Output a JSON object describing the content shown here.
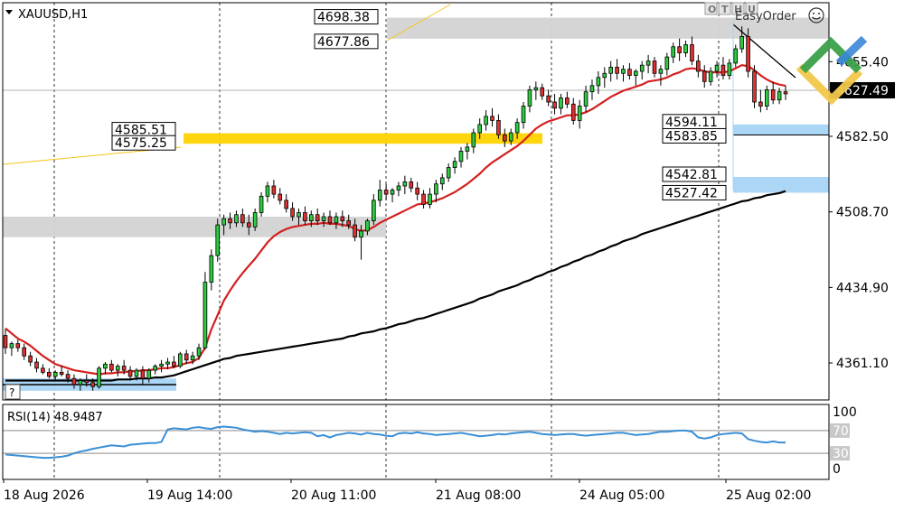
{
  "window": {
    "symbol_title": "XAUUSD,H1",
    "trade_panel": {
      "buttons": [
        "O",
        "T",
        "H",
        "U"
      ],
      "label": "EasyOrder",
      "icon": "smiley-icon"
    },
    "help_label": "?",
    "brand_icon": "logo-icon"
  },
  "chart_data": {
    "type": "candlestick",
    "symbol": "XAUUSD",
    "timeframe": "H1",
    "price_axis": {
      "ticks": [
        4361.1,
        4434.9,
        4508.7,
        4582.5,
        4655.4
      ],
      "min": 4325,
      "max": 4713
    },
    "time_axis": {
      "labels": [
        "18 Aug 2026",
        "19 Aug 14:00",
        "20 Aug 11:00",
        "21 Aug 08:00",
        "24 Aug 05:00",
        "25 Aug 02:00"
      ]
    },
    "current_price": 4627.49,
    "candles": [
      [
        4388,
        4394,
        4370,
        4376
      ],
      [
        4376,
        4382,
        4368,
        4380
      ],
      [
        4380,
        4384,
        4372,
        4376
      ],
      [
        4376,
        4380,
        4364,
        4368
      ],
      [
        4368,
        4372,
        4358,
        4362
      ],
      [
        4362,
        4366,
        4352,
        4356
      ],
      [
        4356,
        4360,
        4350,
        4352
      ],
      [
        4352,
        4356,
        4346,
        4348
      ],
      [
        4348,
        4354,
        4344,
        4352
      ],
      [
        4352,
        4358,
        4348,
        4350
      ],
      [
        4350,
        4354,
        4342,
        4346
      ],
      [
        4346,
        4350,
        4336,
        4340
      ],
      [
        4340,
        4346,
        4334,
        4344
      ],
      [
        4344,
        4350,
        4338,
        4342
      ],
      [
        4342,
        4346,
        4334,
        4338
      ],
      [
        4338,
        4358,
        4336,
        4356
      ],
      [
        4356,
        4362,
        4350,
        4360
      ],
      [
        4360,
        4364,
        4352,
        4354
      ],
      [
        4354,
        4360,
        4348,
        4358
      ],
      [
        4358,
        4364,
        4350,
        4354
      ],
      [
        4354,
        4358,
        4344,
        4348
      ],
      [
        4348,
        4356,
        4344,
        4354
      ],
      [
        4354,
        4358,
        4340,
        4346
      ],
      [
        4346,
        4356,
        4342,
        4354
      ],
      [
        4354,
        4360,
        4350,
        4358
      ],
      [
        4358,
        4364,
        4352,
        4360
      ],
      [
        4360,
        4366,
        4355,
        4362
      ],
      [
        4362,
        4368,
        4356,
        4358
      ],
      [
        4358,
        4372,
        4356,
        4370
      ],
      [
        4370,
        4374,
        4360,
        4364
      ],
      [
        4364,
        4372,
        4360,
        4368
      ],
      [
        4368,
        4380,
        4364,
        4376
      ],
      [
        4376,
        4450,
        4374,
        4440
      ],
      [
        4440,
        4472,
        4432,
        4466
      ],
      [
        4466,
        4502,
        4460,
        4496
      ],
      [
        4496,
        4506,
        4486,
        4502
      ],
      [
        4502,
        4508,
        4492,
        4498
      ],
      [
        4498,
        4510,
        4494,
        4506
      ],
      [
        4506,
        4512,
        4494,
        4498
      ],
      [
        4498,
        4506,
        4486,
        4494
      ],
      [
        4494,
        4512,
        4490,
        4508
      ],
      [
        4508,
        4528,
        4504,
        4524
      ],
      [
        4524,
        4538,
        4518,
        4534
      ],
      [
        4534,
        4540,
        4522,
        4526
      ],
      [
        4526,
        4532,
        4516,
        4520
      ],
      [
        4520,
        4526,
        4508,
        4512
      ],
      [
        4512,
        4518,
        4500,
        4504
      ],
      [
        4504,
        4512,
        4496,
        4508
      ],
      [
        4508,
        4514,
        4496,
        4500
      ],
      [
        4500,
        4510,
        4494,
        4506
      ],
      [
        4506,
        4512,
        4496,
        4500
      ],
      [
        4500,
        4508,
        4494,
        4504
      ],
      [
        4504,
        4510,
        4496,
        4498
      ],
      [
        4498,
        4508,
        4492,
        4504
      ],
      [
        4504,
        4510,
        4494,
        4500
      ],
      [
        4500,
        4506,
        4492,
        4496
      ],
      [
        4496,
        4502,
        4480,
        4484
      ],
      [
        4484,
        4496,
        4462,
        4490
      ],
      [
        4490,
        4502,
        4486,
        4500
      ],
      [
        4500,
        4526,
        4496,
        4520
      ],
      [
        4520,
        4540,
        4514,
        4530
      ],
      [
        4530,
        4536,
        4520,
        4526
      ],
      [
        4526,
        4532,
        4518,
        4530
      ],
      [
        4530,
        4538,
        4524,
        4534
      ],
      [
        4534,
        4544,
        4526,
        4538
      ],
      [
        4538,
        4542,
        4528,
        4532
      ],
      [
        4532,
        4538,
        4520,
        4526
      ],
      [
        4526,
        4530,
        4512,
        4516
      ],
      [
        4516,
        4532,
        4512,
        4526
      ],
      [
        4526,
        4540,
        4518,
        4536
      ],
      [
        4536,
        4546,
        4530,
        4542
      ],
      [
        4542,
        4556,
        4538,
        4552
      ],
      [
        4552,
        4562,
        4546,
        4558
      ],
      [
        4558,
        4572,
        4552,
        4568
      ],
      [
        4568,
        4576,
        4560,
        4572
      ],
      [
        4572,
        4590,
        4566,
        4586
      ],
      [
        4586,
        4600,
        4580,
        4594
      ],
      [
        4594,
        4608,
        4588,
        4602
      ],
      [
        4602,
        4610,
        4592,
        4598
      ],
      [
        4598,
        4604,
        4580,
        4584
      ],
      [
        4584,
        4590,
        4572,
        4578
      ],
      [
        4578,
        4590,
        4574,
        4586
      ],
      [
        4586,
        4600,
        4580,
        4596
      ],
      [
        4596,
        4616,
        4590,
        4612
      ],
      [
        4612,
        4632,
        4606,
        4628
      ],
      [
        4628,
        4636,
        4618,
        4630
      ],
      [
        4630,
        4634,
        4618,
        4622
      ],
      [
        4622,
        4628,
        4612,
        4616
      ],
      [
        4616,
        4624,
        4604,
        4610
      ],
      [
        4610,
        4624,
        4604,
        4620
      ],
      [
        4620,
        4626,
        4610,
        4614
      ],
      [
        4614,
        4620,
        4594,
        4598
      ],
      [
        4598,
        4618,
        4590,
        4612
      ],
      [
        4612,
        4632,
        4606,
        4626
      ],
      [
        4626,
        4638,
        4618,
        4632
      ],
      [
        4632,
        4646,
        4624,
        4640
      ],
      [
        4640,
        4650,
        4630,
        4644
      ],
      [
        4644,
        4656,
        4636,
        4650
      ],
      [
        4650,
        4658,
        4638,
        4644
      ],
      [
        4644,
        4652,
        4636,
        4648
      ],
      [
        4648,
        4654,
        4638,
        4642
      ],
      [
        4642,
        4648,
        4632,
        4646
      ],
      [
        4646,
        4656,
        4638,
        4652
      ],
      [
        4652,
        4662,
        4644,
        4656
      ],
      [
        4656,
        4660,
        4640,
        4644
      ],
      [
        4644,
        4652,
        4632,
        4648
      ],
      [
        4648,
        4664,
        4642,
        4660
      ],
      [
        4660,
        4674,
        4654,
        4670
      ],
      [
        4670,
        4678,
        4656,
        4664
      ],
      [
        4664,
        4676,
        4660,
        4672
      ],
      [
        4672,
        4680,
        4652,
        4656
      ],
      [
        4656,
        4662,
        4640,
        4646
      ],
      [
        4646,
        4652,
        4630,
        4636
      ],
      [
        4636,
        4650,
        4632,
        4646
      ],
      [
        4646,
        4656,
        4640,
        4652
      ],
      [
        4652,
        4660,
        4638,
        4642
      ],
      [
        4642,
        4658,
        4638,
        4654
      ],
      [
        4654,
        4672,
        4650,
        4668
      ],
      [
        4668,
        4690,
        4664,
        4680
      ],
      [
        4680,
        4688,
        4640,
        4646
      ],
      [
        4646,
        4652,
        4610,
        4616
      ],
      [
        4616,
        4628,
        4606,
        4612
      ],
      [
        4612,
        4632,
        4608,
        4628
      ],
      [
        4628,
        4636,
        4614,
        4618
      ],
      [
        4618,
        4630,
        4614,
        4626
      ],
      [
        4626,
        4632,
        4618,
        4624
      ]
    ],
    "moving_averages": [
      {
        "name": "MA fast",
        "color": "#d42020",
        "values": [
          4395,
          4390,
          4385,
          4382,
          4378,
          4373,
          4368,
          4364,
          4360,
          4358,
          4356,
          4354,
          4353,
          4352,
          4351,
          4350,
          4351,
          4351,
          4352,
          4352,
          4353,
          4353,
          4354,
          4354,
          4355,
          4356,
          4356,
          4357,
          4359,
          4361,
          4362,
          4366,
          4376,
          4394,
          4408,
          4422,
          4432,
          4441,
          4449,
          4456,
          4463,
          4471,
          4479,
          4485,
          4489,
          4492,
          4494,
          4495,
          4496,
          4497,
          4497,
          4498,
          4497,
          4497,
          4496,
          4495,
          4492,
          4490,
          4491,
          4494,
          4498,
          4501,
          4504,
          4507,
          4510,
          4513,
          4516,
          4517,
          4518,
          4520,
          4522,
          4525,
          4528,
          4532,
          4536,
          4541,
          4546,
          4552,
          4557,
          4561,
          4565,
          4569,
          4573,
          4578,
          4584,
          4590,
          4594,
          4597,
          4599,
          4601,
          4603,
          4603,
          4604,
          4606,
          4609,
          4613,
          4617,
          4621,
          4624,
          4627,
          4629,
          4631,
          4633,
          4636,
          4637,
          4638,
          4640,
          4643,
          4645,
          4648,
          4649,
          4648,
          4646,
          4645,
          4645,
          4645,
          4646,
          4649,
          4652,
          4651,
          4647,
          4642,
          4638,
          4635,
          4633,
          4632
        ]
      },
      {
        "name": "MA slow",
        "color": "#000000",
        "values": [
          4344,
          4344,
          4344,
          4344,
          4344,
          4344,
          4344,
          4344,
          4344,
          4344,
          4344,
          4344,
          4344,
          4344,
          4344,
          4344,
          4344,
          4344,
          4345,
          4345,
          4345,
          4346,
          4346,
          4346,
          4347,
          4347,
          4348,
          4349,
          4351,
          4353,
          4355,
          4357,
          4359,
          4361,
          4363,
          4365,
          4366,
          4368,
          4369,
          4370,
          4371,
          4372,
          4373,
          4374,
          4375,
          4376,
          4377,
          4378,
          4379,
          4380,
          4381,
          4382,
          4383,
          4384,
          4385,
          4387,
          4388,
          4390,
          4391,
          4392,
          4394,
          4395,
          4397,
          4399,
          4400,
          4402,
          4404,
          4405,
          4407,
          4409,
          4411,
          4413,
          4415,
          4417,
          4419,
          4421,
          4424,
          4426,
          4428,
          4431,
          4433,
          4435,
          4437,
          4440,
          4442,
          4445,
          4447,
          4450,
          4452,
          4455,
          4457,
          4460,
          4462,
          4465,
          4467,
          4470,
          4472,
          4475,
          4477,
          4480,
          4482,
          4484,
          4487,
          4489,
          4491,
          4493,
          4495,
          4497,
          4499,
          4501,
          4503,
          4505,
          4507,
          4509,
          4511,
          4513,
          4515,
          4517,
          4519,
          4520,
          4522,
          4523,
          4525,
          4526,
          4527,
          4529
        ]
      }
    ],
    "zones": [
      {
        "type": "supply",
        "color": "#d3d3d3",
        "from": 4677.86,
        "to": 4698.38,
        "labels": [
          "4698.38",
          "4677.86"
        ]
      },
      {
        "type": "demand",
        "color": "#ffd400",
        "from": 4575.25,
        "to": 4585.51,
        "labels": [
          "4585.51",
          "4575.25"
        ]
      },
      {
        "type": "demand",
        "color": "#a8d4f4",
        "from": 4583.85,
        "to": 4594.11,
        "labels": [
          "4594.11",
          "4583.85"
        ]
      },
      {
        "type": "demand",
        "color": "#a8d4f4",
        "from": 4527.42,
        "to": 4542.81,
        "labels": [
          "4542.81",
          "4527.42"
        ]
      },
      {
        "type": "range",
        "color": "#d3d3d3",
        "from": 4484,
        "to": 4504
      },
      {
        "type": "range",
        "color": "#a8d4f4",
        "from": 4334,
        "to": 4346
      }
    ],
    "horizontal_lines": [
      {
        "price": 4583.85,
        "color": "#000000"
      },
      {
        "price": 4627.49,
        "color": "#b0b0b0"
      }
    ],
    "rsi": {
      "label": "RSI(14) 48.9487",
      "period": 14,
      "last": 48.9487,
      "levels": [
        70,
        30
      ],
      "axis_ticks": [
        100,
        70,
        30,
        0
      ],
      "color": "#3a8fd6",
      "values": [
        28,
        27,
        26,
        25,
        24,
        23,
        22,
        22,
        23,
        24,
        26,
        30,
        33,
        35,
        38,
        40,
        42,
        44,
        43,
        42,
        45,
        46,
        47,
        48,
        48,
        50,
        72,
        74,
        73,
        72,
        75,
        76,
        74,
        73,
        76,
        77,
        76,
        75,
        72,
        70,
        68,
        69,
        68,
        66,
        64,
        66,
        65,
        66,
        67,
        66,
        60,
        62,
        58,
        62,
        64,
        66,
        65,
        63,
        66,
        64,
        63,
        61,
        60,
        65,
        66,
        65,
        67,
        65,
        64,
        62,
        63,
        64,
        65,
        66,
        64,
        62,
        60,
        61,
        62,
        64,
        63,
        65,
        66,
        67,
        68,
        66,
        64,
        63,
        62,
        63,
        64,
        64,
        62,
        61,
        62,
        63,
        64,
        65,
        66,
        66,
        64,
        62,
        63,
        64,
        66,
        68,
        68,
        69,
        70,
        70,
        68,
        58,
        56,
        58,
        62,
        64,
        65,
        66,
        65,
        55,
        52,
        50,
        49,
        51,
        49,
        49
      ]
    }
  }
}
